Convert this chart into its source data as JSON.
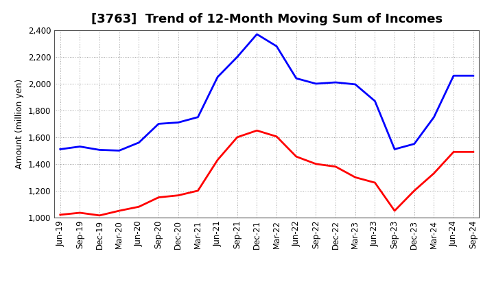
{
  "title": "[3763]  Trend of 12-Month Moving Sum of Incomes",
  "ylabel": "Amount (million yen)",
  "ylim": [
    1000,
    2400
  ],
  "yticks": [
    1000,
    1200,
    1400,
    1600,
    1800,
    2000,
    2200,
    2400
  ],
  "labels": [
    "Jun-19",
    "Sep-19",
    "Dec-19",
    "Mar-20",
    "Jun-20",
    "Sep-20",
    "Dec-20",
    "Mar-21",
    "Jun-21",
    "Sep-21",
    "Dec-21",
    "Mar-22",
    "Jun-22",
    "Sep-22",
    "Dec-22",
    "Mar-23",
    "Jun-23",
    "Sep-23",
    "Dec-23",
    "Mar-24",
    "Jun-24",
    "Sep-24"
  ],
  "ordinary_income": [
    1510,
    1530,
    1505,
    1500,
    1560,
    1700,
    1710,
    1750,
    2050,
    2200,
    2370,
    2280,
    2040,
    2000,
    2010,
    1995,
    1870,
    1510,
    1550,
    1750,
    2060,
    2060
  ],
  "net_income": [
    1020,
    1035,
    1015,
    1050,
    1080,
    1150,
    1165,
    1200,
    1430,
    1600,
    1650,
    1605,
    1455,
    1400,
    1380,
    1300,
    1260,
    1050,
    1200,
    1330,
    1490,
    1490
  ],
  "ordinary_color": "#0000ff",
  "net_color": "#ff0000",
  "background_color": "#ffffff",
  "grid_color": "#888888",
  "title_fontsize": 13,
  "label_fontsize": 9,
  "tick_fontsize": 8.5
}
